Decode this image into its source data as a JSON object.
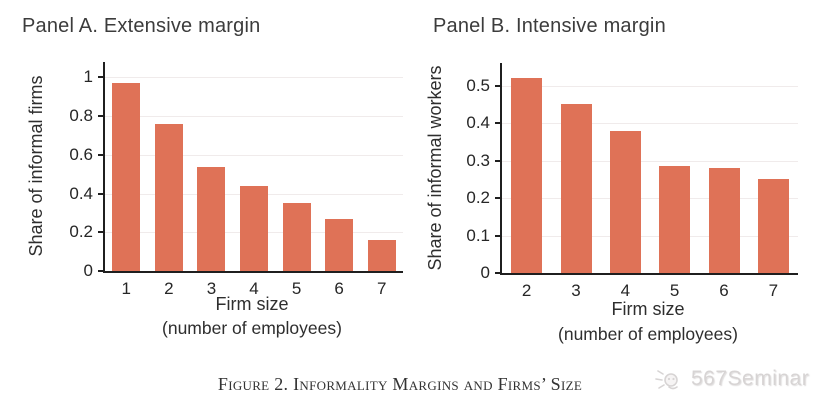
{
  "page": {
    "background": "#ffffff"
  },
  "caption": "Figure 2. Informality Margins and Firms’ Size",
  "watermark": {
    "label": "567Seminar",
    "icon": "doodle-speaker-icon",
    "color": "#d7d4d4"
  },
  "chart_data": [
    {
      "type": "bar",
      "panel": "A",
      "title": "Panel A. Extensive margin",
      "ylabel": "Share of informal firms",
      "xlabel": "Firm size",
      "xlabel_sub": "(number of employees)",
      "categories": [
        "1",
        "2",
        "3",
        "4",
        "5",
        "6",
        "7"
      ],
      "values": [
        0.97,
        0.76,
        0.54,
        0.44,
        0.35,
        0.27,
        0.16
      ],
      "yticks": [
        0,
        0.2,
        0.4,
        0.6,
        0.8,
        1
      ],
      "ytick_labels": [
        "0",
        "0.2",
        "0.4",
        "0.6",
        "0.8",
        "1"
      ],
      "ylim": [
        0,
        1.08
      ],
      "grid": true,
      "legend": "none",
      "bar_color": "#df7257"
    },
    {
      "type": "bar",
      "panel": "B",
      "title": "Panel B. Intensive margin",
      "ylabel": "Share of informal workers",
      "xlabel": "Firm size",
      "xlabel_sub": "(number of employees)",
      "categories": [
        "2",
        "3",
        "4",
        "5",
        "6",
        "7"
      ],
      "values": [
        0.52,
        0.45,
        0.38,
        0.285,
        0.28,
        0.25
      ],
      "yticks": [
        0,
        0.1,
        0.2,
        0.3,
        0.4,
        0.5
      ],
      "ytick_labels": [
        "0",
        "0.1",
        "0.2",
        "0.3",
        "0.4",
        "0.5"
      ],
      "ylim": [
        0,
        0.56
      ],
      "grid": true,
      "legend": "none",
      "bar_color": "#df7257"
    }
  ]
}
